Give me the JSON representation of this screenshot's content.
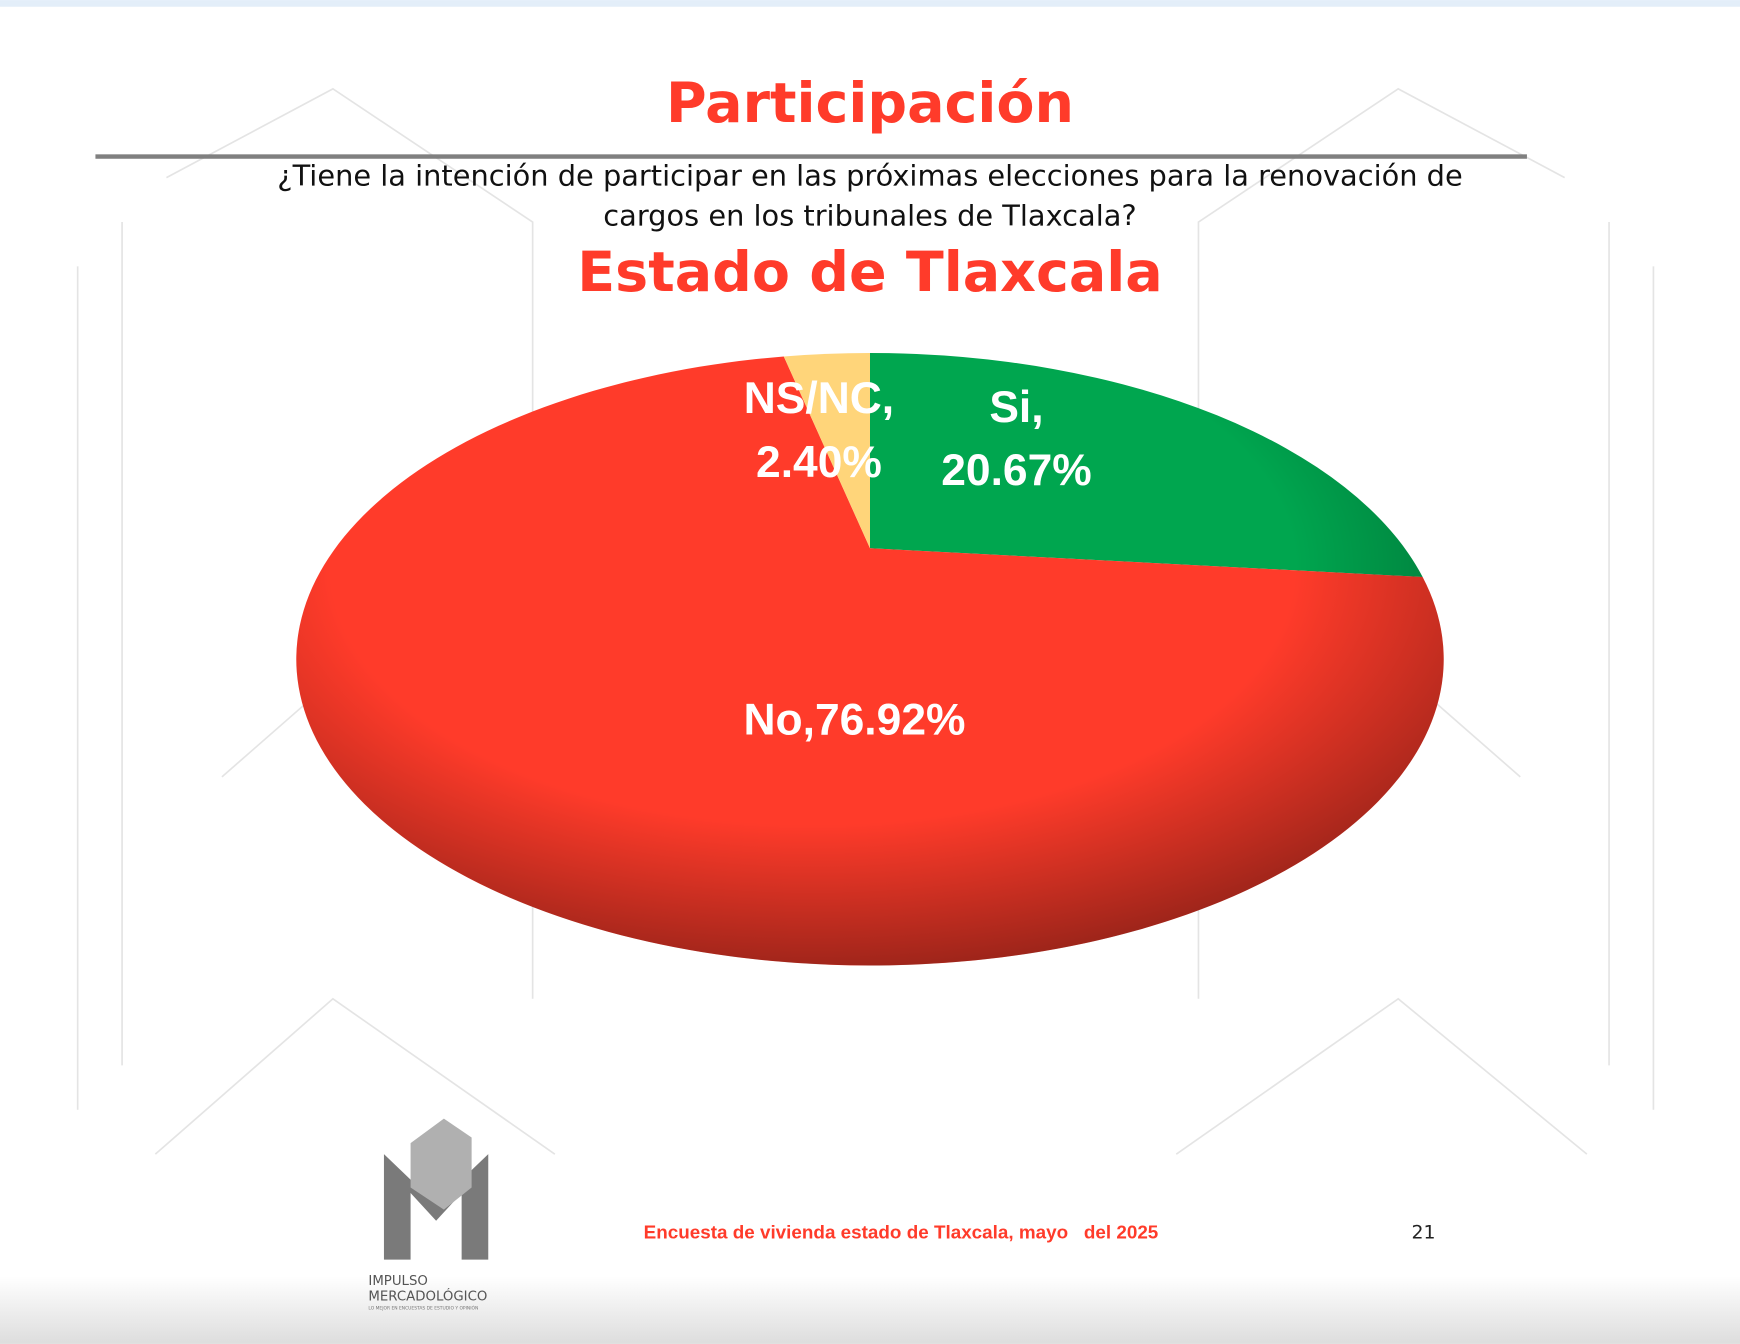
{
  "chart_data": {
    "type": "pie",
    "title": "Participación",
    "subtitle": [
      "¿Tiene la intención de participar en las próximas elecciones para la renovación de",
      "cargos en los tribunales de Tlaxcala?"
    ],
    "chart_title": "Estado de Tlaxcala",
    "categories": [
      "Si",
      "No",
      "NS/NC"
    ],
    "values": [
      20.67,
      76.92,
      2.4
    ],
    "value_labels": [
      "20.67%",
      "76.92%",
      "2.40%"
    ],
    "label_separator": ",",
    "colors": [
      "#00a64f",
      "#ff3b2a",
      "#ffd57a"
    ]
  },
  "footer": {
    "source": "Encuesta de vivienda estado de Tlaxcala, mayo   del 2025",
    "page": "21",
    "logo": [
      "IMPULSO",
      "MERCADOLÓGICO",
      "LO MEJOR EN ENCUESTAS DE ESTUDIO Y OPINIÓN"
    ]
  }
}
